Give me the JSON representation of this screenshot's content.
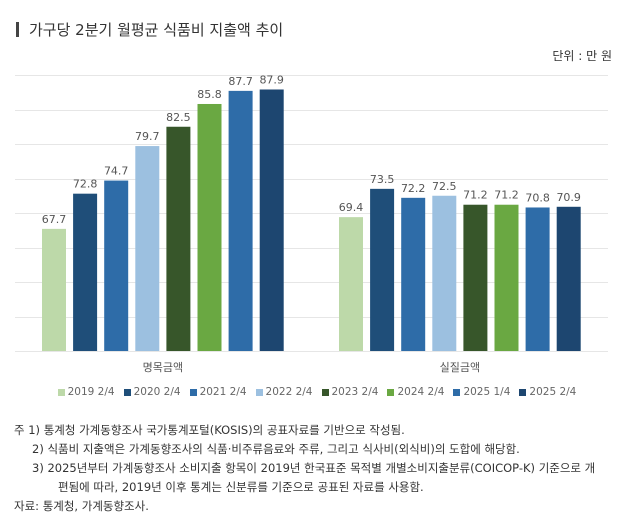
{
  "title": "가구당 2분기 월평균 식품비 지출액 추이",
  "unit": "단위 : 만 원",
  "chart_data": {
    "type": "bar",
    "title": "가구당 2분기 월평균 식품비 지출액 추이",
    "categories": [
      "명목금액",
      "실질금액"
    ],
    "series": [
      {
        "name": "2019 2/4",
        "color": "#bdd9a9",
        "values": [
          67.7,
          69.4
        ]
      },
      {
        "name": "2020 2/4",
        "color": "#1f4e79",
        "values": [
          72.8,
          73.5
        ]
      },
      {
        "name": "2021 2/4",
        "color": "#2e6ca8",
        "values": [
          74.7,
          72.2
        ]
      },
      {
        "name": "2022 2/4",
        "color": "#9cc0e0",
        "values": [
          79.7,
          72.5
        ]
      },
      {
        "name": "2023 2/4",
        "color": "#37562a",
        "values": [
          82.5,
          71.2
        ]
      },
      {
        "name": "2024 2/4",
        "color": "#6aa842",
        "values": [
          85.8,
          71.2
        ]
      },
      {
        "name": "2025 1/4",
        "color": "#2e6ca8",
        "values": [
          87.7,
          70.8
        ]
      },
      {
        "name": "2025 2/4",
        "color": "#1d4670",
        "values": [
          87.9,
          70.9
        ]
      }
    ],
    "ylim": [
      50,
      90
    ],
    "ytick_step": 5,
    "grid": true,
    "yaxis_labels_shown": false,
    "legend": "bottom",
    "data_labels": true
  },
  "notes": [
    "주 1) 통계청 가계동향조사 국가통계포털(KOSIS)의 공표자료를 기반으로 작성됨.",
    "2) 식품비 지출액은 가계동향조사의 식품·비주류음료와 주류, 그리고 식사비(외식비)의 도합에 해당함.",
    "3) 2025년부터 가계동향조사 소비지출 항목이 2019년 한국표준 목적별 개별소비지출분류(COICOP-K) 기준으로 개",
    "편됨에 따라, 2019년 이후 통계는 신분류를 기준으로 공표된 자료를 사용함."
  ],
  "source": "자료: 통계청, 가계동향조사."
}
